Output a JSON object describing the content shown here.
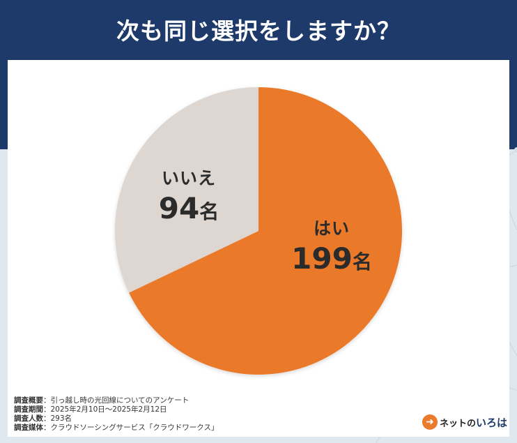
{
  "title": "次も同じ選択をしますか？",
  "colors": {
    "header": "#1d3a6b",
    "yes": "#ea7a2c",
    "no": "#ddd6d1",
    "background": "#dfe8ef"
  },
  "chart_data": {
    "type": "pie",
    "title": "次も同じ選択をしますか？",
    "unit": "名",
    "categories": [
      "はい",
      "いいえ"
    ],
    "values": [
      199,
      94
    ],
    "colors": [
      "#ea7a2c",
      "#ddd6d1"
    ],
    "legend": "none"
  },
  "labels": {
    "yes": {
      "category": "はい",
      "value": "199",
      "unit": "名"
    },
    "no": {
      "category": "いいえ",
      "value": "94",
      "unit": "名"
    }
  },
  "survey": [
    {
      "key": "調査概要",
      "value": "：引っ越し時の光回線についてのアンケート"
    },
    {
      "key": "調査期間",
      "value": "：2025年2月10日～2025年2月12日"
    },
    {
      "key": "調査人数",
      "value": "：293名"
    },
    {
      "key": "調査媒体",
      "value": "：クラウドソーシングサービス「クラウドワークス」"
    }
  ],
  "logo": {
    "icon": "arrow-right-icon",
    "prefix": "ネットの",
    "name": "いろは"
  }
}
